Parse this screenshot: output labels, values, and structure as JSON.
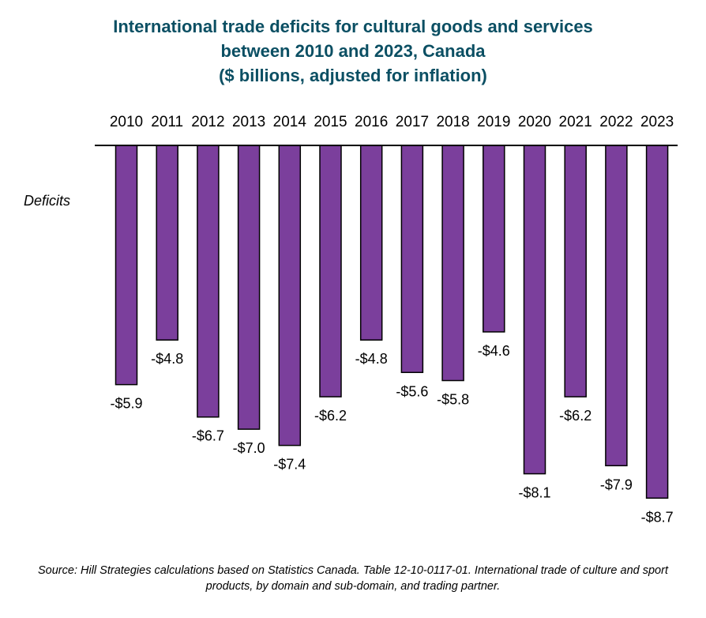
{
  "title_lines": [
    "International trade deficits for cultural goods and services",
    "between 2010 and 2023, Canada",
    "($ billions, adjusted for inflation)"
  ],
  "source": "Source:   Hill Strategies calculations based on Statistics Canada. Table 12-10-0117-01. International trade of culture and sport products, by domain and sub-domain, and trading partner.",
  "chart_data": {
    "type": "bar",
    "title": "International trade deficits for cultural goods and services between 2010 and 2023, Canada ($ billions, adjusted for inflation)",
    "categories": [
      "2010",
      "2011",
      "2012",
      "2013",
      "2014",
      "2015",
      "2016",
      "2017",
      "2018",
      "2019",
      "2020",
      "2021",
      "2022",
      "2023"
    ],
    "values": [
      -5.9,
      -4.8,
      -6.7,
      -7.0,
      -7.4,
      -6.2,
      -4.8,
      -5.6,
      -5.8,
      -4.6,
      -8.1,
      -6.2,
      -7.9,
      -8.7
    ],
    "data_labels": [
      "-$5.9",
      "-$4.8",
      "-$6.7",
      "-$7.0",
      "-$7.4",
      "-$6.2",
      "-$4.8",
      "-$5.6",
      "-$5.8",
      "-$4.6",
      "-$8.1",
      "-$6.2",
      "-$7.9",
      "-$8.7"
    ],
    "annotation": "Deficits",
    "bar_color": "#7b3f9c",
    "ylim": [
      -8.7,
      0
    ],
    "grid": false,
    "legend": "none"
  }
}
